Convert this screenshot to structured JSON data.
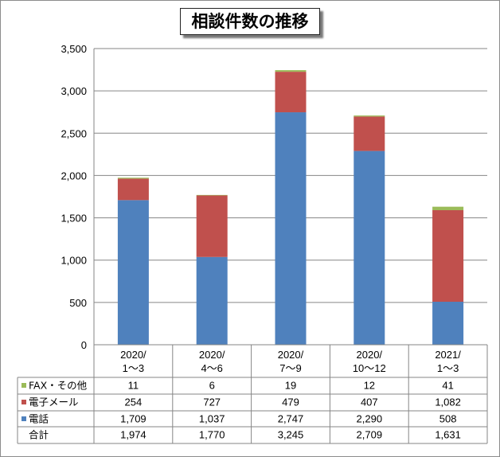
{
  "chart_data": {
    "type": "bar",
    "stacked": true,
    "title": "相談件数の推移",
    "categories": [
      [
        "2020/",
        "1～3"
      ],
      [
        "2020/",
        "4～6"
      ],
      [
        "2020/",
        "7～9"
      ],
      [
        "2020/",
        "10～12"
      ],
      [
        "2021/",
        "1～3"
      ]
    ],
    "series": [
      {
        "name": "電話",
        "color": "#4f81bd",
        "values": [
          1709,
          1037,
          2747,
          2290,
          508
        ],
        "labels": [
          "1,709",
          "1,037",
          "2,747",
          "2,290",
          "508"
        ]
      },
      {
        "name": "電子メール",
        "color": "#c0504d",
        "values": [
          254,
          727,
          479,
          407,
          1082
        ],
        "labels": [
          "254",
          "727",
          "479",
          "407",
          "1,082"
        ]
      },
      {
        "name": "FAX・その他",
        "color": "#9bbb59",
        "values": [
          11,
          6,
          19,
          12,
          41
        ],
        "labels": [
          "11",
          "6",
          "19",
          "12",
          "41"
        ]
      }
    ],
    "totals": {
      "name": "合計",
      "labels": [
        "1,974",
        "1,770",
        "3,245",
        "2,709",
        "1,631"
      ]
    },
    "ylim": [
      0,
      3500
    ],
    "yticks": [
      "0",
      "500",
      "1,000",
      "1,500",
      "2,000",
      "2,500",
      "3,000",
      "3,500"
    ],
    "grid": true,
    "data_table": true
  }
}
